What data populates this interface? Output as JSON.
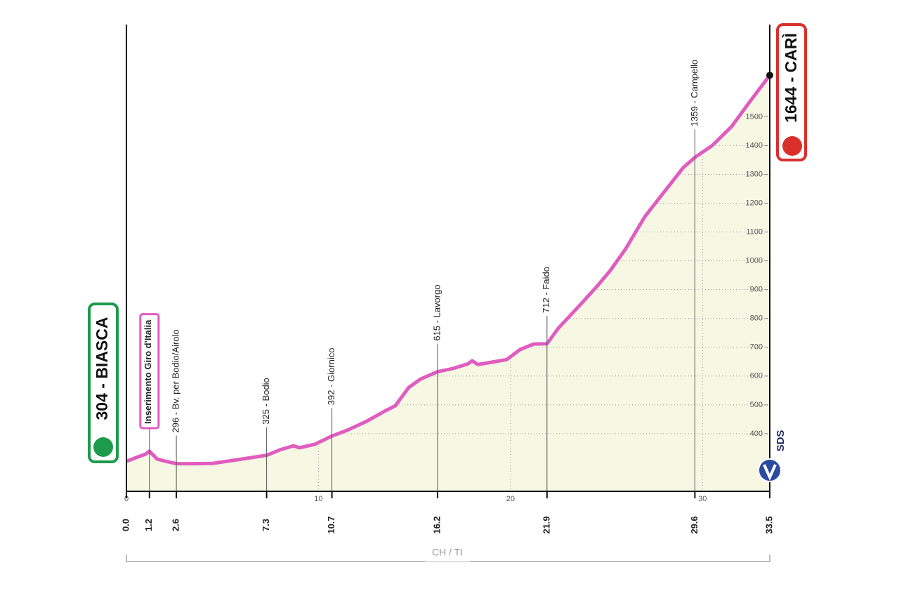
{
  "chart_data": {
    "type": "area",
    "x": [
      0,
      0.5,
      1.0,
      1.2,
      1.6,
      2.0,
      2.6,
      3.5,
      4.5,
      5.5,
      6.5,
      7.3,
      8.0,
      8.7,
      9.0,
      9.8,
      10.7,
      11.5,
      12.5,
      13.5,
      14.0,
      14.7,
      15.3,
      16.2,
      17.0,
      17.8,
      18.0,
      18.3,
      19.0,
      19.8,
      20.5,
      21.2,
      21.9,
      22.5,
      23.5,
      24.5,
      25.2,
      26.0,
      27.0,
      28.0,
      29.0,
      29.6,
      30.5,
      31.5,
      32.5,
      33.5
    ],
    "values": [
      304,
      317,
      329,
      339,
      312,
      305,
      296,
      296,
      297,
      307,
      317,
      325,
      344,
      358,
      351,
      363,
      392,
      412,
      443,
      480,
      497,
      560,
      589,
      615,
      626,
      643,
      653,
      640,
      648,
      657,
      692,
      711,
      712,
      767,
      838,
      911,
      967,
      1042,
      1154,
      1239,
      1324,
      1359,
      1400,
      1465,
      1556,
      1644
    ],
    "color": "#e05cbf",
    "fill": "#f6f8e4",
    "grid": true,
    "xlim": [
      0,
      33.5
    ],
    "ylim": [
      200,
      1820
    ],
    "xticks": [
      0,
      10,
      20,
      30
    ],
    "yticks": [
      400,
      500,
      600,
      700,
      800,
      900,
      1000,
      1100,
      1200,
      1300,
      1400,
      1500
    ],
    "km_marks": [
      {
        "value": 0,
        "label": "0.0"
      },
      {
        "value": 1.2,
        "label": "1.2"
      },
      {
        "value": 2.6,
        "label": "2.6"
      },
      {
        "value": 7.3,
        "label": "7.3"
      },
      {
        "value": 10.7,
        "label": "10.7"
      },
      {
        "value": 16.2,
        "label": "16.2"
      },
      {
        "value": 21.9,
        "label": "21.9"
      },
      {
        "value": 29.6,
        "label": "29.6"
      },
      {
        "value": 33.5,
        "label": "33.5"
      }
    ],
    "waypoints": [
      {
        "km": 1.2,
        "name": "Inserimento Giro d'Italia"
      },
      {
        "km": 2.6,
        "name": "296 - Bv. per Bodio/Airolo"
      },
      {
        "km": 7.3,
        "name": "325 - Bodio"
      },
      {
        "km": 10.7,
        "name": "392 - Giornico"
      },
      {
        "km": 16.2,
        "name": "615 - Lavorgo"
      },
      {
        "km": 21.9,
        "name": "712 - Faido"
      },
      {
        "km": 29.6,
        "name": "1359 - Campello"
      }
    ],
    "start": "304 - BIASCA",
    "finish": "1644 - CARÌ",
    "region": "CH / TI",
    "logo": "SDS"
  }
}
